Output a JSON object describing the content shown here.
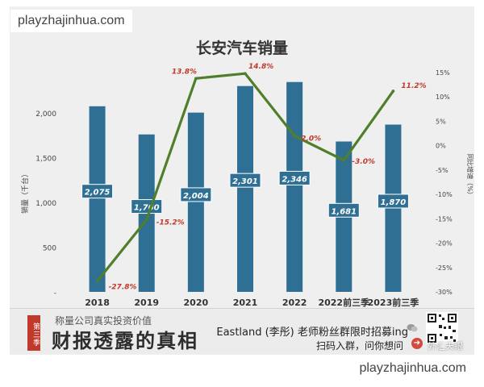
{
  "watermark": {
    "top": "playzhajinhua.com",
    "bottom": "playzhajinhua.com"
  },
  "chart_data": {
    "type": "bar",
    "title": "长安汽车销量",
    "categories": [
      "2018",
      "2019",
      "2020",
      "2021",
      "2022",
      "2022前三季",
      "2023前三季"
    ],
    "series": [
      {
        "kind": "bar",
        "values": [
          2075,
          1760,
          2004,
          2301,
          2346,
          1681,
          1870
        ],
        "labels": [
          "2,075",
          "1,760",
          "2,004",
          "2,301",
          "2,346",
          "1,681",
          "1,870"
        ],
        "color": "#2e6f93"
      },
      {
        "kind": "line",
        "values": [
          -27.8,
          -15.2,
          13.8,
          14.8,
          2.0,
          -3.0,
          11.2
        ],
        "labels": [
          "-27.8%",
          "-15.2%",
          "13.8%",
          "14.8%",
          "2.0%",
          "-3.0%",
          "11.2%"
        ],
        "color": "#4f7f2b",
        "label_color": "#c0392b"
      }
    ],
    "ylabel_left": "销量（千台）",
    "ylabel_right": "同比增速（%）",
    "yticks_left": [
      "-",
      "500",
      "1,000",
      "1,500",
      "2,000"
    ],
    "yticks_right": [
      "-30%",
      "-25%",
      "-20%",
      "-15%",
      "-10%",
      "-5%",
      "0%",
      "5%",
      "10%",
      "15%"
    ],
    "ylim_left": [
      0,
      2650
    ],
    "ylim_right": [
      -30,
      15
    ],
    "grid": false,
    "legend": "none"
  },
  "banner": {
    "badge": "第三季",
    "tagline": "称量公司真实投资价值",
    "title": "财报透露的真相",
    "line1": "Eastland (李彤) 老师粉丝群限时招募ing",
    "line2": "扫码入群，问你想问",
    "arrow": "➔",
    "qr_caption": "外汇天眼"
  }
}
